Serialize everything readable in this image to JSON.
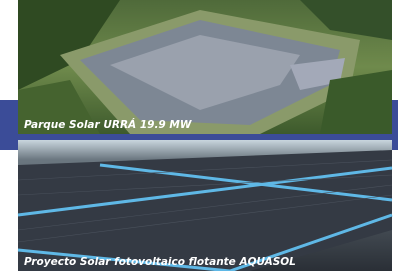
{
  "photos": [
    {
      "caption": "Parque Solar URRÁ 19.9 MW"
    },
    {
      "caption": "Proyecto Solar fotovoltaico flotante AQUASOL"
    }
  ]
}
